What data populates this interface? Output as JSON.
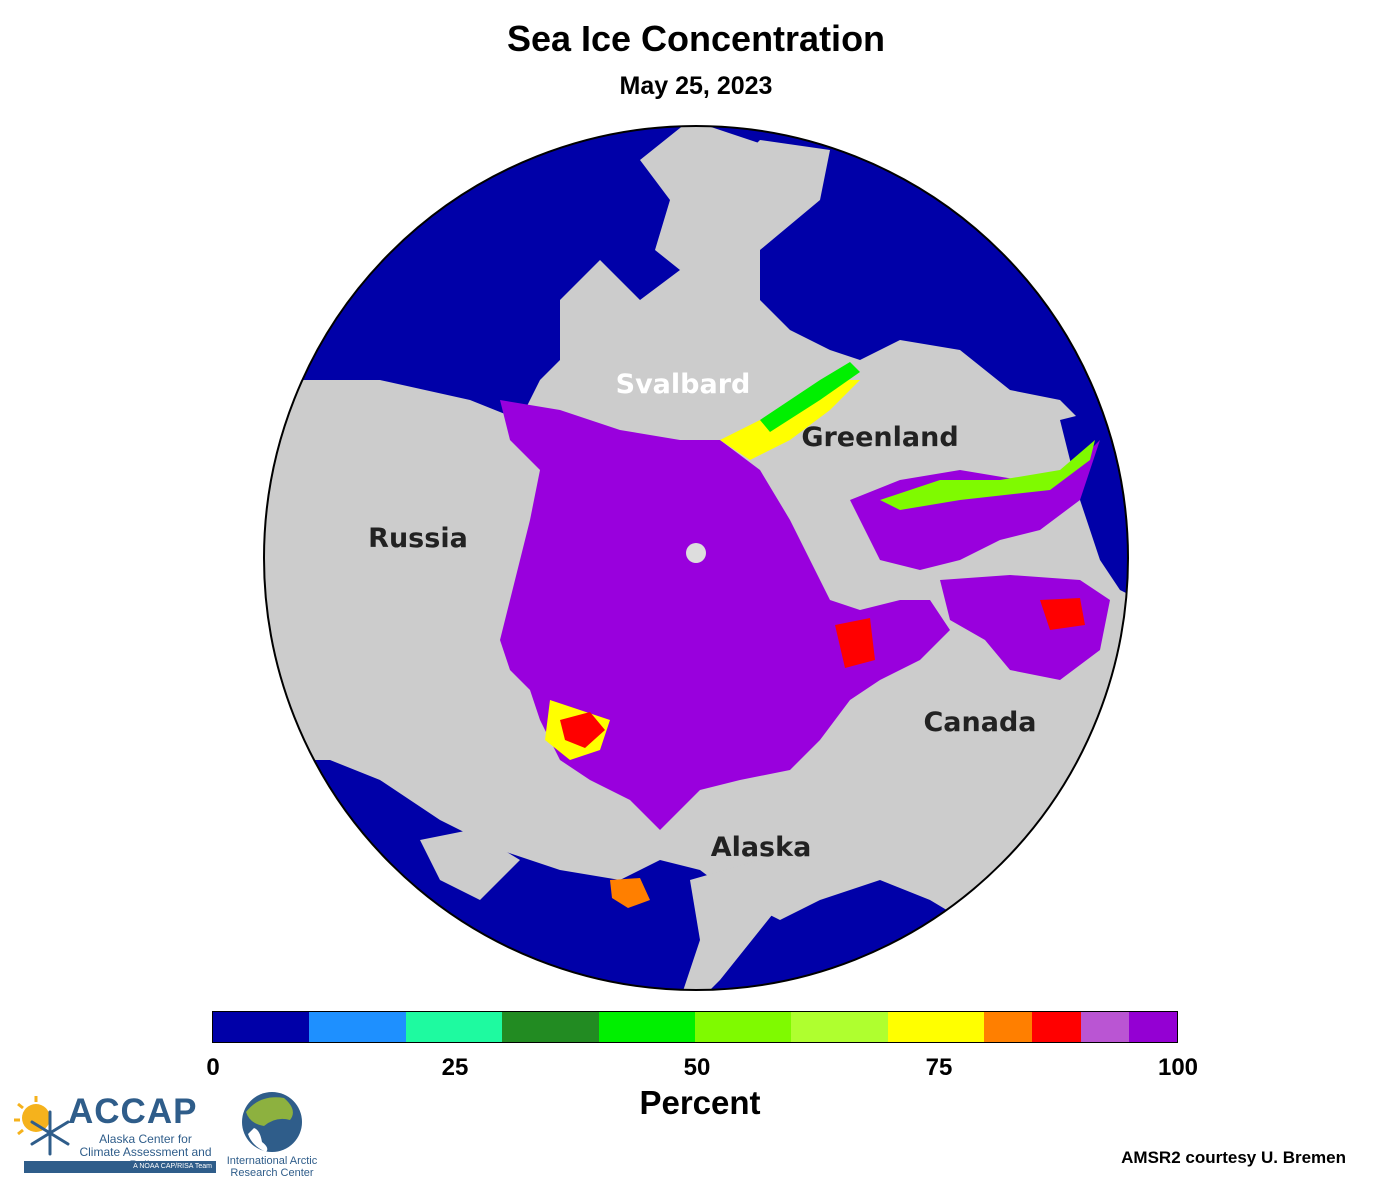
{
  "header": {
    "title": "Sea Ice Concentration",
    "date": "May 25, 2023"
  },
  "map": {
    "projection": "north-polar-stereographic",
    "colors": {
      "ocean": "#0000a8",
      "land": "#cccccc",
      "ice_full": "#9900dd",
      "pole_hole": "#dddddd"
    },
    "labels": [
      {
        "key": "svalbard",
        "text": "Svalbard",
        "color": "#ffffff"
      },
      {
        "key": "greenland",
        "text": "Greenland",
        "color": "#222222"
      },
      {
        "key": "russia",
        "text": "Russia",
        "color": "#222222"
      },
      {
        "key": "canada",
        "text": "Canada",
        "color": "#222222"
      },
      {
        "key": "alaska",
        "text": "Alaska",
        "color": "#222222"
      }
    ]
  },
  "colorbar": {
    "title": "Percent",
    "ticks": [
      "0",
      "25",
      "50",
      "75",
      "100"
    ],
    "range": [
      0,
      100
    ],
    "bins": [
      {
        "from": 0,
        "to": 10,
        "color": "#0000a8"
      },
      {
        "from": 10,
        "to": 20,
        "color": "#1e90ff"
      },
      {
        "from": 20,
        "to": 30,
        "color": "#1efaa0"
      },
      {
        "from": 30,
        "to": 40,
        "color": "#228b22"
      },
      {
        "from": 40,
        "to": 50,
        "color": "#00f000"
      },
      {
        "from": 50,
        "to": 60,
        "color": "#7ffa00"
      },
      {
        "from": 60,
        "to": 70,
        "color": "#afff2f"
      },
      {
        "from": 70,
        "to": 80,
        "color": "#ffff00"
      },
      {
        "from": 80,
        "to": 85,
        "color": "#ff7f00"
      },
      {
        "from": 85,
        "to": 90,
        "color": "#ff0000"
      },
      {
        "from": 90,
        "to": 95,
        "color": "#ba55d3"
      },
      {
        "from": 95,
        "to": 100,
        "color": "#9400d3"
      }
    ]
  },
  "credit": "AMSR2 courtesy U. Bremen",
  "logos": {
    "accap": {
      "name": "ACCAP",
      "subtitle": "Alaska Center for Climate Assessment and Policy",
      "band": "A NOAA CAP/RISA Team"
    },
    "iarc": {
      "name": "International Arctic Research Center"
    }
  }
}
